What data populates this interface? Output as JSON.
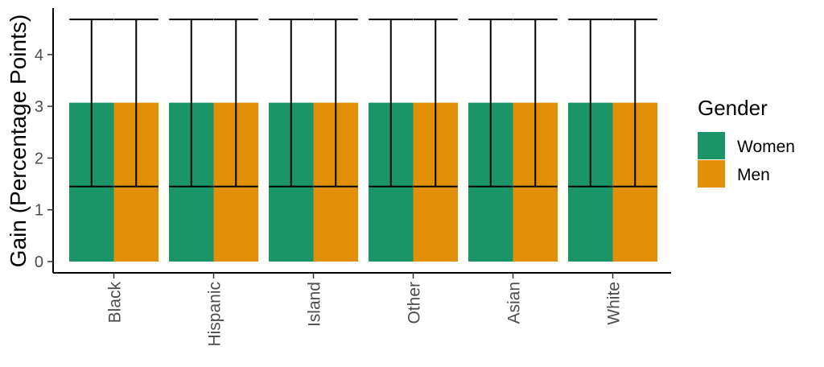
{
  "chart_data": {
    "type": "bar",
    "title": "",
    "xlabel": "",
    "ylabel": "Gain (Percentage Points)",
    "categories": [
      "Black",
      "Hispanic",
      "Island",
      "Other",
      "Asian",
      "White"
    ],
    "series": [
      {
        "name": "Women",
        "color": "#1b9468",
        "values": [
          3.07,
          3.07,
          3.07,
          3.07,
          3.07,
          3.07
        ],
        "error_low": [
          1.45,
          1.45,
          1.45,
          1.45,
          1.45,
          1.45
        ],
        "error_high": [
          4.68,
          4.68,
          4.68,
          4.68,
          4.68,
          4.68
        ]
      },
      {
        "name": "Men",
        "color": "#e08f07",
        "values": [
          3.07,
          3.07,
          3.07,
          3.07,
          3.07,
          3.07
        ],
        "error_low": [
          1.45,
          1.45,
          1.45,
          1.45,
          1.45,
          1.45
        ],
        "error_high": [
          4.68,
          4.68,
          4.68,
          4.68,
          4.68,
          4.68
        ]
      }
    ],
    "ylim": [
      0,
      4.85
    ],
    "yticks": [
      "0",
      "1",
      "2",
      "3",
      "4"
    ],
    "legend": {
      "title": "Gender",
      "position": "right"
    },
    "grid": false
  }
}
